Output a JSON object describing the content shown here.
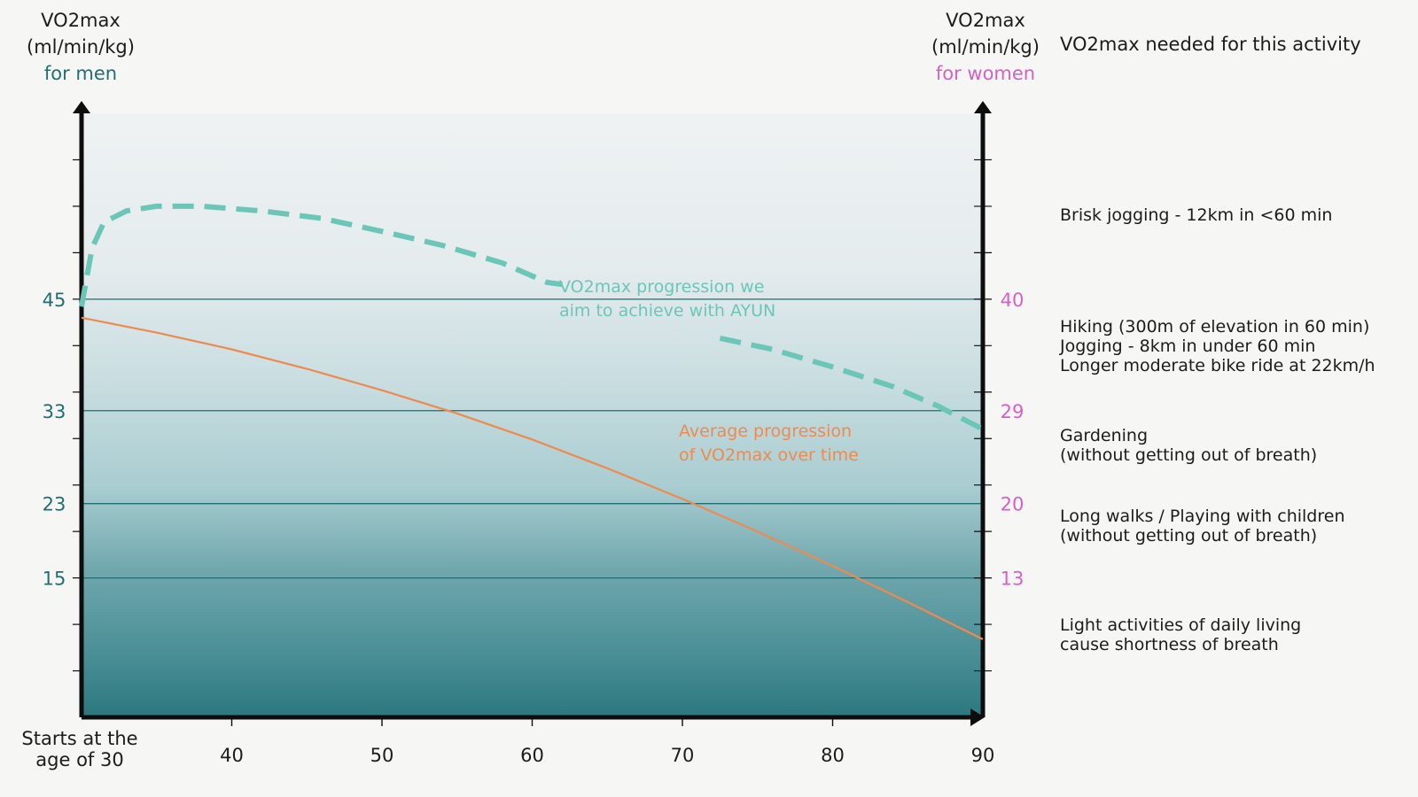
{
  "header": {
    "left_title": "VO2max",
    "left_unit": "(ml/min/kg)",
    "left_group": "for men",
    "right_title": "VO2max",
    "right_unit": "(ml/min/kg)",
    "right_group": "for women",
    "activity_header": "VO2max needed for this activity"
  },
  "colors": {
    "men": "#1f6f73",
    "women": "#d65fc8",
    "ayun_line": "#6cc6b8",
    "average_line": "#ee8a4f",
    "axis": "#0d0d0d"
  },
  "activities": [
    "Brisk jogging - 12km in <60 min",
    "Hiking (300m of elevation in 60 min)\nJogging - 8km in under 60 min\nLonger moderate bike ride at 22km/h",
    "Gardening\n(without getting out of breath)",
    "Long walks / Playing with children\n(without getting out of breath)",
    "Light activities of daily living\ncause shortness of breath"
  ],
  "chart_data": {
    "type": "line",
    "x_start_label": "Starts at the\nage of 30",
    "x_ticks": [
      40,
      50,
      60,
      70,
      80,
      90
    ],
    "xlim": [
      30,
      90
    ],
    "ylim": [
      0,
      65
    ],
    "bands_men": [
      45,
      33,
      23,
      15
    ],
    "bands_women": [
      40,
      29,
      20,
      13
    ],
    "series": [
      {
        "name": "VO2max progression we\naim to achieve with AYUN",
        "style": "dashed",
        "points": [
          [
            30,
            44.2
          ],
          [
            30.7,
            50.5
          ],
          [
            31.5,
            53.3
          ],
          [
            33,
            54.5
          ],
          [
            35,
            55.0
          ],
          [
            38,
            55.0
          ],
          [
            42,
            54.5
          ],
          [
            46,
            53.7
          ],
          [
            50,
            52.3
          ],
          [
            54,
            50.8
          ],
          [
            58,
            48.9
          ],
          [
            61,
            46.8
          ],
          [
            62,
            46.6
          ]
        ],
        "points_2": [
          [
            72.5,
            40.8
          ],
          [
            76,
            39.6
          ],
          [
            80,
            37.7
          ],
          [
            84,
            35.6
          ],
          [
            87,
            33.5
          ],
          [
            90,
            31.0
          ]
        ]
      },
      {
        "name": "Average progression\nof VO2max over time",
        "style": "solid",
        "points": [
          [
            30,
            43.0
          ],
          [
            35,
            41.4
          ],
          [
            40,
            39.6
          ],
          [
            45,
            37.5
          ],
          [
            50,
            35.2
          ],
          [
            55,
            32.7
          ],
          [
            60,
            29.9
          ],
          [
            65,
            26.8
          ],
          [
            70,
            23.5
          ],
          [
            75,
            20.0
          ],
          [
            80,
            16.3
          ],
          [
            85,
            12.4
          ],
          [
            90,
            8.4
          ]
        ]
      }
    ]
  }
}
